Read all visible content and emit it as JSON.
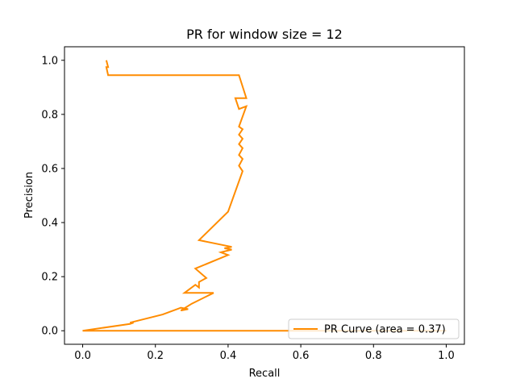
{
  "chart_data": {
    "type": "line",
    "title": "PR for window size = 12",
    "xlabel": "Recall",
    "ylabel": "Precision",
    "xlim": [
      -0.05,
      1.05
    ],
    "ylim": [
      -0.05,
      1.05
    ],
    "xticks": [
      0.0,
      0.2,
      0.4,
      0.6,
      0.8,
      1.0
    ],
    "xtick_labels": [
      "0.0",
      "0.2",
      "0.4",
      "0.6",
      "0.8",
      "1.0"
    ],
    "yticks": [
      0.0,
      0.2,
      0.4,
      0.6,
      0.8,
      1.0
    ],
    "ytick_labels": [
      "0.0",
      "0.2",
      "0.4",
      "0.6",
      "0.8",
      "1.0"
    ],
    "grid": false,
    "legend_position": "lower-right",
    "series": [
      {
        "name": "PR Curve (area = 0.37)",
        "color": "#ff8c00",
        "x": [
          1.0,
          0.0,
          0.13,
          0.14,
          0.13,
          0.22,
          0.27,
          0.29,
          0.27,
          0.3,
          0.36,
          0.28,
          0.31,
          0.32,
          0.32,
          0.34,
          0.31,
          0.4,
          0.38,
          0.41,
          0.39,
          0.41,
          0.32,
          0.4,
          0.44,
          0.43,
          0.44,
          0.43,
          0.44,
          0.43,
          0.44,
          0.43,
          0.44,
          0.43,
          0.45,
          0.43,
          0.42,
          0.45,
          0.43,
          0.43,
          0.07,
          0.065,
          0.07,
          0.065
        ],
        "y": [
          0.0,
          0.0,
          0.025,
          0.03,
          0.03,
          0.06,
          0.085,
          0.08,
          0.075,
          0.1,
          0.14,
          0.14,
          0.17,
          0.16,
          0.18,
          0.195,
          0.23,
          0.28,
          0.29,
          0.3,
          0.305,
          0.31,
          0.335,
          0.44,
          0.59,
          0.61,
          0.635,
          0.65,
          0.675,
          0.69,
          0.71,
          0.725,
          0.745,
          0.755,
          0.83,
          0.82,
          0.86,
          0.86,
          0.945,
          0.945,
          0.945,
          0.975,
          0.975,
          1.0
        ]
      }
    ]
  }
}
